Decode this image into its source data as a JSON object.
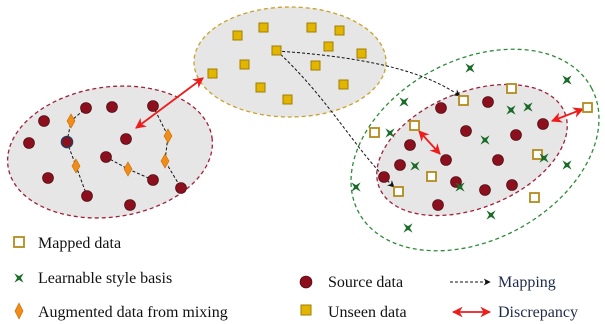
{
  "legend": {
    "mapped_data": "Mapped data",
    "style_basis": "Learnable style basis",
    "augmented": "Augmented data from mixing",
    "source": "Source data",
    "unseen": "Unseen data",
    "mapping": "Mapping",
    "discrepancy": "Discrepancy"
  },
  "colors": {
    "source": "#8b0f1c",
    "unseen_fill": "#e2b600",
    "unseen_stroke": "#a07d00",
    "mapped_stroke": "#b58a1a",
    "style_basis": "#1a6b2a",
    "augmented": "#f28c18",
    "source_region_border": "#a0203a",
    "unseen_region_border": "#c9a22a",
    "outer_region_border": "#2e8b3a",
    "region_fill": "#e6e6e6",
    "discrepancy_arrow": "#ee1c1c",
    "mapping_arrow": "#111111"
  },
  "icons": {
    "mapped": "hollow-square-icon",
    "style_basis": "green-star-icon",
    "augmented": "orange-diamond-icon",
    "source": "red-circle-icon",
    "unseen": "yellow-square-icon",
    "mapping": "dashed-arrow-icon",
    "discrepancy": "double-red-arrow-icon"
  }
}
